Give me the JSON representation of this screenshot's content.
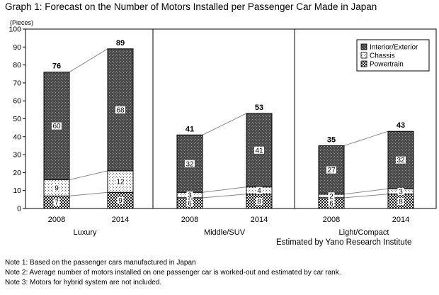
{
  "title": "Graph 1: Forecast on the Number of Motors Installed per Passenger Car Made in Japan",
  "source": "Estimated by Yano Research Institute",
  "notes": [
    "Note 1: Based on the passenger cars manufactured in Japan",
    "Note 2: Average number of motors installed on one passenger car is worked-out and estimated by car rank.",
    "Note 3: Motors for hybrid system are not included."
  ],
  "chart_data": {
    "type": "bar",
    "stacked": true,
    "title": "Graph 1: Forecast on the Number of Motors Installed per Passenger Car Made in Japan",
    "ylabel": "(Pieces)",
    "ylim": [
      0,
      100
    ],
    "yticks": [
      0,
      10,
      20,
      30,
      40,
      50,
      60,
      70,
      80,
      90,
      100
    ],
    "grid": false,
    "legend_position": "top-right",
    "groups": [
      {
        "name": "Luxury",
        "categories": [
          "2008",
          "2014"
        ]
      },
      {
        "name": "Middle/SUV",
        "categories": [
          "2008",
          "2014"
        ]
      },
      {
        "name": "Light/Compact",
        "categories": [
          "2008",
          "2014"
        ]
      }
    ],
    "series": [
      {
        "name": "Powertrain",
        "values": [
          7,
          9,
          6,
          8,
          6,
          8
        ]
      },
      {
        "name": "Chassis",
        "values": [
          9,
          12,
          3,
          4,
          2,
          3
        ]
      },
      {
        "name": "Interior/Exterior",
        "values": [
          60,
          68,
          32,
          41,
          27,
          32
        ]
      }
    ],
    "totals": [
      76,
      89,
      41,
      53,
      35,
      43
    ],
    "segment_labels": [
      [
        "7",
        "9",
        "60"
      ],
      [
        "9",
        "12",
        "68"
      ],
      [
        "6",
        "3",
        "32"
      ],
      [
        "8",
        "4",
        "41"
      ],
      [
        "6",
        "2",
        "27"
      ],
      [
        "8",
        "3",
        "32"
      ]
    ],
    "legend": [
      "Interior/Exterior",
      "Chassis",
      "Powertrain"
    ]
  }
}
